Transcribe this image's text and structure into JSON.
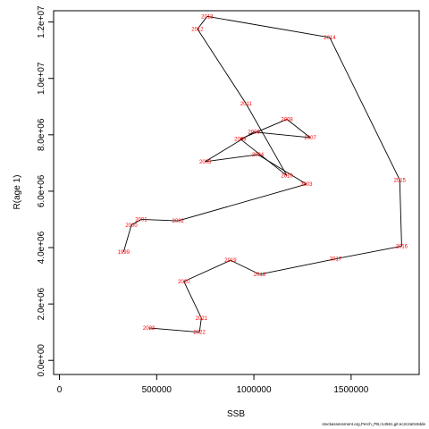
{
  "chart_data": {
    "type": "line",
    "title": "",
    "xlabel": "SSB",
    "ylabel": "R(age 1)",
    "xlim": [
      -30000,
      1850000
    ],
    "ylim": [
      -500000,
      12400000
    ],
    "x_ticks": [
      {
        "value": 0,
        "label": "0"
      },
      {
        "value": 500000,
        "label": "500000"
      },
      {
        "value": 1000000,
        "label": "1000000"
      },
      {
        "value": 1500000,
        "label": "1500000"
      }
    ],
    "y_ticks": [
      {
        "value": 0,
        "label": "0.0e+00"
      },
      {
        "value": 2000000,
        "label": "2.0e+06"
      },
      {
        "value": 4000000,
        "label": "4.0e+06"
      },
      {
        "value": 6000000,
        "label": "6.0e+06"
      },
      {
        "value": 8000000,
        "label": "8.0e+06"
      },
      {
        "value": 10000000,
        "label": "1.0e+07"
      },
      {
        "value": 12000000,
        "label": "1.2e+07"
      }
    ],
    "grid": false,
    "line_color": "#000000",
    "label_color": "#ff0000",
    "points": [
      {
        "year": "1999",
        "x": 330000,
        "y": 3850000
      },
      {
        "year": "2000",
        "x": 370000,
        "y": 4800000
      },
      {
        "year": "2001",
        "x": 420000,
        "y": 5000000
      },
      {
        "year": "2002",
        "x": 610000,
        "y": 4950000
      },
      {
        "year": "2003",
        "x": 1270000,
        "y": 6250000
      },
      {
        "year": "2004",
        "x": 1020000,
        "y": 7300000
      },
      {
        "year": "2005",
        "x": 750000,
        "y": 7050000
      },
      {
        "year": "2006",
        "x": 1000000,
        "y": 8100000
      },
      {
        "year": "2007",
        "x": 1290000,
        "y": 7900000
      },
      {
        "year": "2008",
        "x": 1170000,
        "y": 8550000
      },
      {
        "year": "2009",
        "x": 930000,
        "y": 7850000
      },
      {
        "year": "2010",
        "x": 1170000,
        "y": 6550000
      },
      {
        "year": "2011",
        "x": 960000,
        "y": 9100000
      },
      {
        "year": "2012",
        "x": 710000,
        "y": 11750000
      },
      {
        "year": "2013",
        "x": 760000,
        "y": 12200000
      },
      {
        "year": "2014",
        "x": 1390000,
        "y": 11450000
      },
      {
        "year": "2015",
        "x": 1750000,
        "y": 6400000
      },
      {
        "year": "2016",
        "x": 1760000,
        "y": 4050000
      },
      {
        "year": "2017",
        "x": 1420000,
        "y": 3600000
      },
      {
        "year": "2018",
        "x": 1030000,
        "y": 3050000
      },
      {
        "year": "2019",
        "x": 880000,
        "y": 3550000
      },
      {
        "year": "2020",
        "x": 640000,
        "y": 2800000
      },
      {
        "year": "2021",
        "x": 730000,
        "y": 1500000
      },
      {
        "year": "2022",
        "x": 720000,
        "y": 1000000
      },
      {
        "year": "2023",
        "x": 460000,
        "y": 1150000
      }
    ]
  },
  "footer": {
    "source": "stockassessment.org,Perch_PB,r14561,git:ec2c2a0c8dde"
  }
}
